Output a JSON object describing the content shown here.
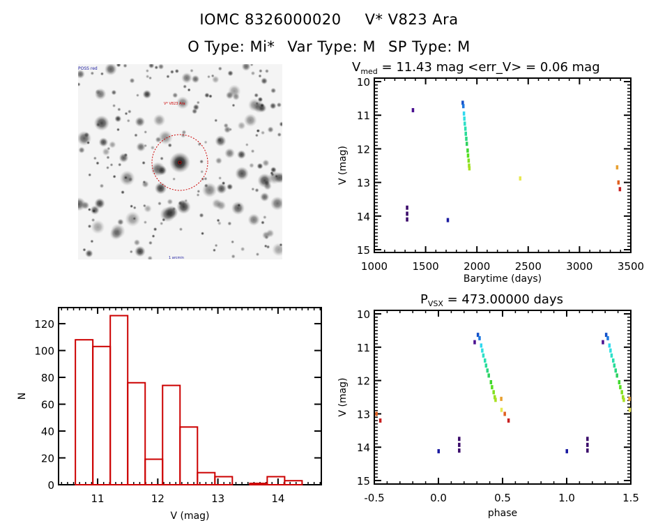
{
  "header": {
    "line1_id": "IOMC 8326000020",
    "line1_name": "V* V823 Ara",
    "line2_otype": "O Type: Mi*",
    "line2_vartype": "Var Type: M",
    "line2_sptype": "SP Type: M"
  },
  "image_panel": {
    "label_top_left": "POSS red",
    "label_target": "V* V823 Ara",
    "label_bottom_left": "N",
    "label_bottom_center": "1 arcmin",
    "label_bottom_right": "E",
    "circle_color": "#cc0000",
    "label_color": "#1a1aa0"
  },
  "chart_data": [
    {
      "id": "histogram",
      "type": "bar",
      "title": "",
      "xlabel": "V (mag)",
      "ylabel": "N",
      "xlim": [
        10.35,
        14.72
      ],
      "ylim": [
        0,
        132
      ],
      "xticks": [
        11,
        12,
        13,
        14
      ],
      "yticks": [
        0,
        20,
        40,
        60,
        80,
        100,
        120
      ],
      "bar_color": "#cc0000",
      "bin_width": 0.29,
      "bin_left_edges": [
        10.63,
        10.92,
        11.21,
        11.5,
        11.79,
        12.08,
        12.37,
        12.66,
        12.95,
        13.24,
        13.53,
        13.82,
        14.11
      ],
      "values": [
        108,
        103,
        126,
        76,
        19,
        74,
        43,
        9,
        6,
        0,
        1,
        6,
        3
      ]
    },
    {
      "id": "light-curve",
      "type": "scatter",
      "title": "V_med = 11.43 mag <err_V> = 0.06 mag",
      "title_main": "V",
      "title_sub": "med",
      "title_rest": " = 11.43 mag <err_V> = 0.06 mag",
      "xlabel": "Barytime (days)",
      "ylabel": "V (mag)",
      "xlim": [
        1000,
        3500
      ],
      "ylim": [
        15,
        10
      ],
      "xticks": [
        1000,
        1500,
        2000,
        2500,
        3000,
        3500
      ],
      "yticks": [
        10,
        11,
        12,
        13,
        14,
        15
      ],
      "points": [
        {
          "t": 1318,
          "v": 13.75,
          "c": "#3a0a6a"
        },
        {
          "t": 1318,
          "v": 13.93,
          "c": "#3a0a6a"
        },
        {
          "t": 1318,
          "v": 14.1,
          "c": "#3a0a6a"
        },
        {
          "t": 1375,
          "v": 10.85,
          "c": "#4a1090"
        },
        {
          "t": 1715,
          "v": 14.12,
          "c": "#1a1aa0"
        },
        {
          "t": 1860,
          "v": 10.63,
          "c": "#1450c8"
        },
        {
          "t": 1866,
          "v": 10.73,
          "c": "#1e78e0"
        },
        {
          "t": 1872,
          "v": 10.95,
          "c": "#30d8f0"
        },
        {
          "t": 1876,
          "v": 11.1,
          "c": "#30e0e0"
        },
        {
          "t": 1880,
          "v": 11.25,
          "c": "#2ee0c8"
        },
        {
          "t": 1886,
          "v": 11.4,
          "c": "#28e0b0"
        },
        {
          "t": 1890,
          "v": 11.55,
          "c": "#28dc98"
        },
        {
          "t": 1895,
          "v": 11.7,
          "c": "#28d880"
        },
        {
          "t": 1900,
          "v": 11.85,
          "c": "#30d060"
        },
        {
          "t": 1908,
          "v": 12.05,
          "c": "#40d830"
        },
        {
          "t": 1912,
          "v": 12.2,
          "c": "#58e020"
        },
        {
          "t": 1918,
          "v": 12.35,
          "c": "#80e020"
        },
        {
          "t": 1922,
          "v": 12.5,
          "c": "#98e020"
        },
        {
          "t": 1925,
          "v": 12.58,
          "c": "#a8e020"
        },
        {
          "t": 2420,
          "v": 12.88,
          "c": "#e8e850"
        },
        {
          "t": 3365,
          "v": 12.55,
          "c": "#e8a030"
        },
        {
          "t": 3378,
          "v": 13.0,
          "c": "#e06020"
        },
        {
          "t": 3392,
          "v": 13.2,
          "c": "#c82020"
        }
      ]
    },
    {
      "id": "phased-light-curve",
      "type": "scatter",
      "title": "P_vsx = 473.00000 days",
      "title_main": "P",
      "title_sub": "VSX",
      "title_rest": " = 473.00000 days",
      "period_days": 473.0,
      "epoch_t0": 1715,
      "xlabel": "phase",
      "ylabel": "V (mag)",
      "xlim": [
        -0.5,
        1.5
      ],
      "ylim": [
        15,
        10
      ],
      "xticks": [
        -0.5,
        0.0,
        0.5,
        1.0,
        1.5
      ],
      "xticklabels": [
        "-0.5",
        "0.0",
        "0.5",
        "1.0",
        "1.5"
      ],
      "yticks": [
        10,
        11,
        12,
        13,
        14,
        15
      ]
    }
  ]
}
